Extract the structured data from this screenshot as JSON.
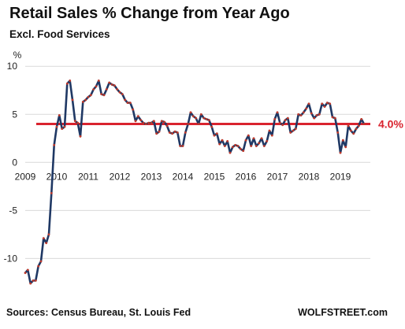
{
  "header": {
    "title": "Retail Sales % Change from Year Ago",
    "subtitle": "Excl. Food Services"
  },
  "footer": {
    "source": "Sources: Census Bureau, St. Louis Fed",
    "brand": "WOLFSTREET.com"
  },
  "chart_data": {
    "type": "line",
    "title": "Retail Sales % Change from Year Ago",
    "subtitle": "Excl. Food Services",
    "ylabel": "%",
    "xlabel": "",
    "x_tick_labels": [
      "2009",
      "2010",
      "2011",
      "2012",
      "2013",
      "2014",
      "2015",
      "2016",
      "2017",
      "2018",
      "2019"
    ],
    "y_tick_labels": [
      "-10",
      "-5",
      "0",
      "5",
      "10"
    ],
    "ylim": [
      -13,
      11
    ],
    "xlim": [
      2009.0,
      2019.95
    ],
    "grid": "horizontal",
    "line_color": "#1f3864",
    "marker_color": "#c0392b",
    "reference_line": {
      "value": 4.0,
      "label": "4.0%",
      "color": "#d9232e"
    },
    "series": [
      {
        "x": [
          "2009-01",
          "2009-02",
          "2009-03",
          "2009-04",
          "2009-05",
          "2009-06",
          "2009-07",
          "2009-08",
          "2009-09",
          "2009-10",
          "2009-11",
          "2009-12",
          "2010-01",
          "2010-02",
          "2010-03",
          "2010-04",
          "2010-05",
          "2010-06",
          "2010-07",
          "2010-08",
          "2010-09",
          "2010-10",
          "2010-11",
          "2010-12",
          "2011-01",
          "2011-02",
          "2011-03",
          "2011-04",
          "2011-05",
          "2011-06",
          "2011-07",
          "2011-08",
          "2011-09",
          "2011-10",
          "2011-11",
          "2011-12",
          "2012-01",
          "2012-02",
          "2012-03",
          "2012-04",
          "2012-05",
          "2012-06",
          "2012-07",
          "2012-08",
          "2012-09",
          "2012-10",
          "2012-11",
          "2012-12",
          "2013-01",
          "2013-02",
          "2013-03",
          "2013-04",
          "2013-05",
          "2013-06",
          "2013-07",
          "2013-08",
          "2013-09",
          "2013-10",
          "2013-11",
          "2013-12",
          "2014-01",
          "2014-02",
          "2014-03",
          "2014-04",
          "2014-05",
          "2014-06",
          "2014-07",
          "2014-08",
          "2014-09",
          "2014-10",
          "2014-11",
          "2014-12",
          "2015-01",
          "2015-02",
          "2015-03",
          "2015-04",
          "2015-05",
          "2015-06",
          "2015-07",
          "2015-08",
          "2015-09",
          "2015-10",
          "2015-11",
          "2015-12",
          "2016-01",
          "2016-02",
          "2016-03",
          "2016-04",
          "2016-05",
          "2016-06",
          "2016-07",
          "2016-08",
          "2016-09",
          "2016-10",
          "2016-11",
          "2016-12",
          "2017-01",
          "2017-02",
          "2017-03",
          "2017-04",
          "2017-05",
          "2017-06",
          "2017-07",
          "2017-08",
          "2017-09",
          "2017-10",
          "2017-11",
          "2017-12",
          "2018-01",
          "2018-02",
          "2018-03",
          "2018-04",
          "2018-05",
          "2018-06",
          "2018-07",
          "2018-08",
          "2018-09",
          "2018-10",
          "2018-11",
          "2018-12",
          "2019-01",
          "2019-02",
          "2019-03",
          "2019-04",
          "2019-05",
          "2019-06",
          "2019-07",
          "2019-08",
          "2019-09",
          "2019-10"
        ],
        "values": [
          -11.5,
          -11.2,
          -12.6,
          -12.3,
          -12.3,
          -10.8,
          -10.3,
          -7.9,
          -8.4,
          -7.5,
          -3.2,
          1.8,
          3.7,
          4.9,
          3.5,
          3.7,
          8.2,
          8.5,
          6.5,
          4.3,
          4.1,
          2.7,
          6.3,
          6.5,
          6.8,
          7.0,
          7.6,
          7.9,
          8.5,
          7.1,
          7.0,
          7.6,
          8.3,
          8.1,
          8.0,
          7.6,
          7.3,
          7.1,
          6.5,
          6.2,
          6.2,
          5.5,
          4.3,
          4.8,
          4.4,
          4.1,
          4.0,
          4.1,
          4.1,
          4.3,
          3.0,
          3.2,
          4.3,
          4.2,
          3.8,
          3.1,
          3.0,
          3.2,
          3.1,
          1.7,
          1.7,
          3.1,
          4.0,
          5.2,
          4.8,
          4.6,
          4.0,
          5.0,
          4.6,
          4.5,
          4.4,
          3.7,
          2.8,
          3.0,
          1.9,
          2.3,
          1.7,
          2.2,
          1.0,
          1.6,
          1.8,
          1.7,
          1.4,
          1.2,
          2.3,
          2.8,
          1.7,
          2.5,
          1.7,
          2.0,
          2.5,
          1.7,
          2.2,
          3.3,
          2.8,
          4.5,
          5.2,
          4.1,
          3.9,
          4.4,
          4.6,
          3.1,
          3.3,
          3.5,
          5.0,
          4.9,
          5.2,
          5.6,
          6.1,
          5.1,
          4.6,
          4.9,
          5.0,
          6.1,
          5.8,
          6.2,
          6.1,
          4.7,
          4.6,
          3.1,
          1.0,
          2.3,
          1.6,
          3.8,
          3.3,
          3.0,
          3.5,
          3.8,
          4.5,
          4.0
        ]
      }
    ]
  }
}
